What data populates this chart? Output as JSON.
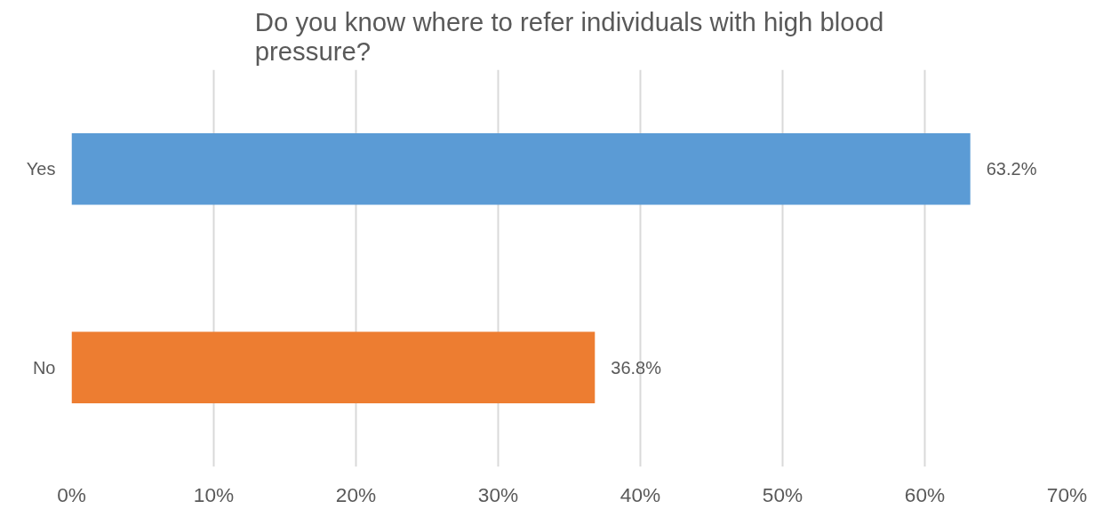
{
  "chart_data": {
    "type": "bar",
    "orientation": "horizontal",
    "title": "Do you know where to refer individuals with high blood pressure?",
    "categories": [
      "Yes",
      "No"
    ],
    "values": [
      63.2,
      36.8
    ],
    "colors": [
      "#5b9bd5",
      "#ed7d31"
    ],
    "value_labels": [
      "63.2%",
      "36.8%"
    ],
    "xlim": [
      0,
      70
    ],
    "xticks": [
      {
        "value": 0,
        "label": "0%"
      },
      {
        "value": 10,
        "label": "10%"
      },
      {
        "value": 20,
        "label": "20%"
      },
      {
        "value": 30,
        "label": "30%"
      },
      {
        "value": 40,
        "label": "40%"
      },
      {
        "value": 50,
        "label": "50%"
      },
      {
        "value": 60,
        "label": "60%"
      },
      {
        "value": 70,
        "label": "70%"
      }
    ],
    "grid": "x"
  }
}
